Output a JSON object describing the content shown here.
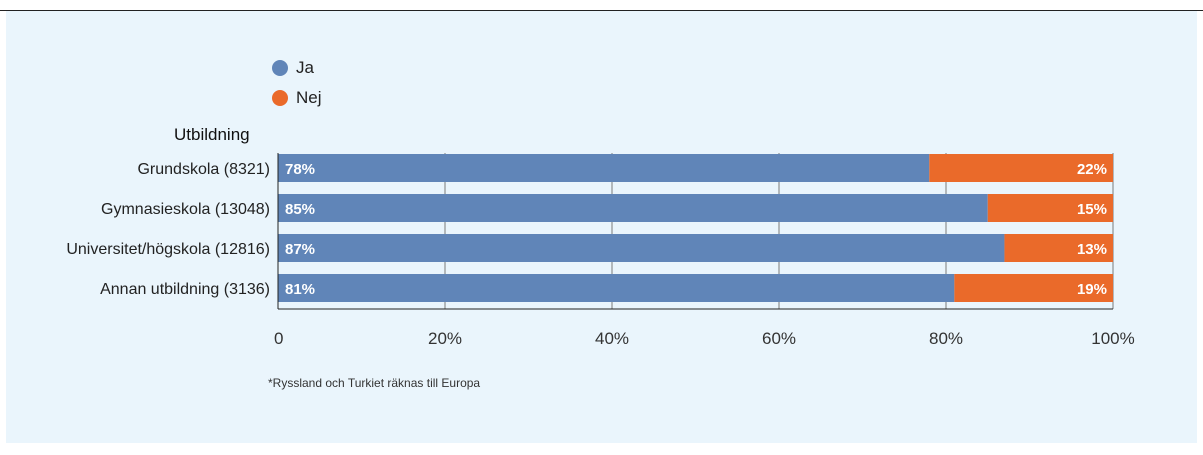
{
  "colors": {
    "ja": "#6085b8",
    "nej": "#ea6a2a",
    "background": "#eaf5fc"
  },
  "legend": {
    "items": [
      {
        "label": "Ja",
        "color": "#6085b8"
      },
      {
        "label": "Nej",
        "color": "#ea6a2a"
      }
    ]
  },
  "chart_data": {
    "type": "bar",
    "orientation": "horizontal",
    "stacked": true,
    "category_axis_title": "Utbildning",
    "categories": [
      "Grundskola (8321)",
      "Gymnasieskola (13048)",
      "Universitet/högskola (12816)",
      "Annan utbildning (3136)"
    ],
    "series": [
      {
        "name": "Ja",
        "values": [
          78,
          85,
          87,
          81
        ],
        "labels": [
          "78%",
          "85%",
          "87%",
          "81%"
        ]
      },
      {
        "name": "Nej",
        "values": [
          22,
          15,
          13,
          19
        ],
        "labels": [
          "22%",
          "15%",
          "13%",
          "19%"
        ]
      }
    ],
    "xlim": [
      0,
      100
    ],
    "x_ticks": [
      0,
      20,
      40,
      60,
      80,
      100
    ],
    "x_tick_labels": [
      "0",
      "20%",
      "40%",
      "60%",
      "80%",
      "100%"
    ],
    "grid": true,
    "legend_position": "top-left"
  },
  "footnote": "*Ryssland och Turkiet räknas till Europa"
}
